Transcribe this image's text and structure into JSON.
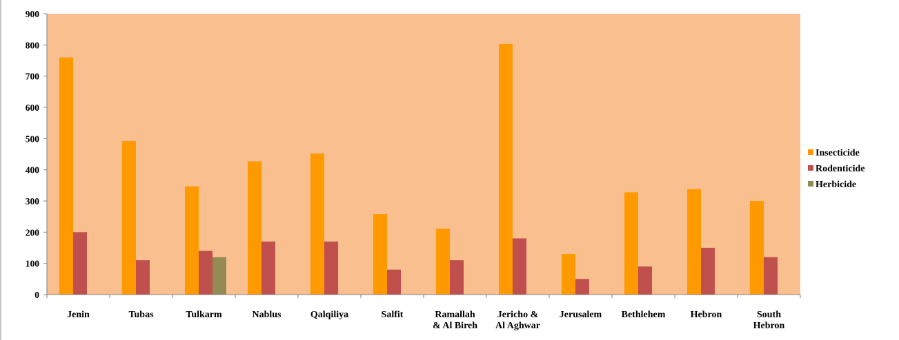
{
  "chart_data": {
    "type": "bar",
    "categories": [
      [
        "Jenin"
      ],
      [
        "Tubas"
      ],
      [
        "Tulkarm"
      ],
      [
        "Nablus"
      ],
      [
        "Qalqiliya"
      ],
      [
        "Salfit"
      ],
      [
        "Ramallah",
        "& Al Bireh"
      ],
      [
        "Jericho &",
        "Al Aghwar"
      ],
      [
        "Jerusalem"
      ],
      [
        "Bethlehem"
      ],
      [
        "Hebron"
      ],
      [
        "South",
        "Hebron"
      ]
    ],
    "series": [
      {
        "name": "Insecticide",
        "color": "#ff9900",
        "values": [
          760,
          492,
          347,
          427,
          452,
          258,
          211,
          803,
          130,
          328,
          338,
          300
        ]
      },
      {
        "name": "Rodenticide",
        "color": "#c0504d",
        "values": [
          200,
          110,
          140,
          170,
          170,
          80,
          110,
          180,
          50,
          90,
          150,
          120
        ]
      },
      {
        "name": "Herbicide",
        "color": "#948a54",
        "values": [
          0,
          0,
          120,
          0,
          0,
          0,
          0,
          0,
          0,
          0,
          0,
          0
        ]
      }
    ],
    "ylim": [
      0,
      900
    ],
    "yticks": [
      "0",
      "100",
      "200",
      "300",
      "400",
      "500",
      "600",
      "700",
      "800",
      "900"
    ],
    "plot_background": "#f9bf8f",
    "grid": false,
    "legend_position": "right",
    "title": "",
    "xlabel": "",
    "ylabel": ""
  }
}
